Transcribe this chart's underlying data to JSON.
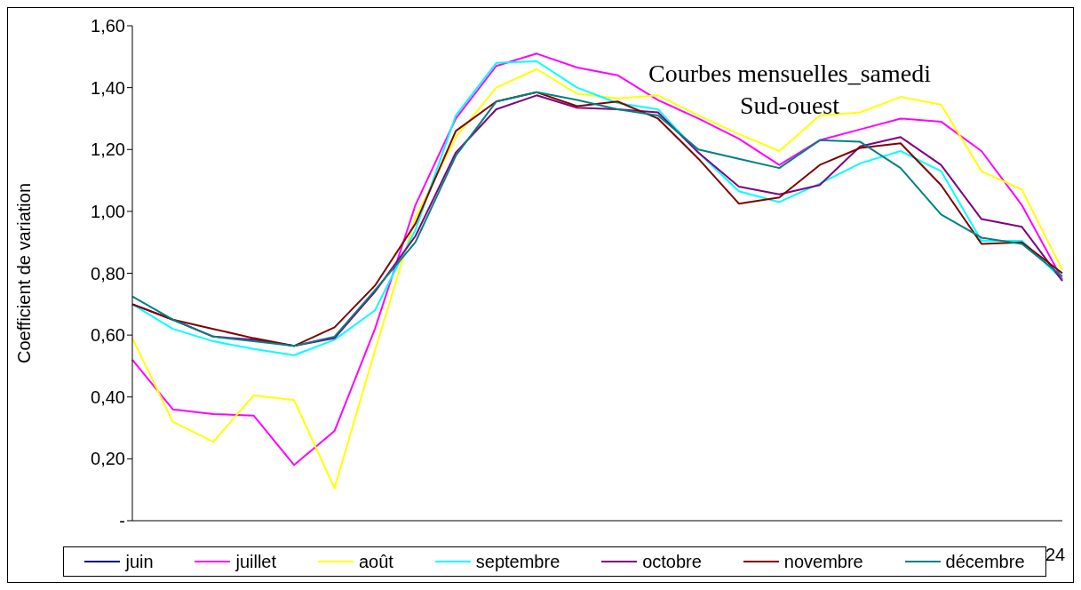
{
  "chart_data": {
    "type": "line",
    "title": "Courbes mensuelles_samedi",
    "subtitle": "Sud-ouest",
    "ylabel": "Coefficient de variation",
    "annotations": [
      "24"
    ],
    "categories": [
      null,
      null,
      null,
      null,
      null,
      null,
      null,
      null,
      null,
      null,
      null,
      null,
      null,
      null,
      null,
      null,
      null,
      null,
      null,
      null,
      null,
      null,
      null,
      null
    ],
    "ylim": [
      0,
      1.6
    ],
    "yticks": [
      {
        "value": 0,
        "label": "-"
      },
      {
        "value": 0.2,
        "label": "0,20"
      },
      {
        "value": 0.4,
        "label": "0,40"
      },
      {
        "value": 0.6,
        "label": "0,60"
      },
      {
        "value": 0.8,
        "label": "0,80"
      },
      {
        "value": 1.0,
        "label": "1,00"
      },
      {
        "value": 1.2,
        "label": "1,20"
      },
      {
        "value": 1.4,
        "label": "1,40"
      },
      {
        "value": 1.6,
        "label": "1,60"
      }
    ],
    "grid": false,
    "legend": "bottom",
    "marker": "none",
    "line_style": "solid",
    "series": [
      {
        "name": "juin",
        "color": "#000080",
        "values": [
          null,
          null,
          null,
          null,
          null,
          null,
          null,
          null,
          null,
          null,
          null,
          null,
          null,
          null,
          null,
          null,
          null,
          null,
          null,
          null,
          null,
          null,
          null,
          null
        ]
      },
      {
        "name": "juillet",
        "color": "#ff00ff",
        "values": [
          0.52,
          0.36,
          0.345,
          0.34,
          0.18,
          0.29,
          0.62,
          1.02,
          1.3,
          1.47,
          1.51,
          1.465,
          1.44,
          1.36,
          1.3,
          1.235,
          1.15,
          1.23,
          1.265,
          1.3,
          1.29,
          1.195,
          1.02,
          0.78
        ]
      },
      {
        "name": "août",
        "color": "#ffff00",
        "values": [
          0.59,
          0.32,
          0.255,
          0.405,
          0.39,
          0.105,
          0.55,
          0.98,
          1.24,
          1.4,
          1.46,
          1.38,
          1.365,
          1.375,
          1.31,
          1.25,
          1.195,
          1.31,
          1.32,
          1.37,
          1.345,
          1.13,
          1.07,
          0.81
        ]
      },
      {
        "name": "septembre",
        "color": "#00ffff",
        "values": [
          0.7,
          0.62,
          0.58,
          0.555,
          0.535,
          0.585,
          0.68,
          0.94,
          1.31,
          1.48,
          1.485,
          1.4,
          1.35,
          1.33,
          1.19,
          1.065,
          1.03,
          1.09,
          1.155,
          1.195,
          1.13,
          0.905,
          0.905,
          0.78
        ]
      },
      {
        "name": "octobre",
        "color": "#800080",
        "values": [
          0.7,
          0.65,
          0.595,
          0.585,
          0.565,
          0.59,
          0.74,
          0.92,
          1.19,
          1.33,
          1.375,
          1.335,
          1.33,
          1.32,
          1.19,
          1.08,
          1.055,
          1.085,
          1.21,
          1.24,
          1.15,
          0.975,
          0.95,
          0.775
        ]
      },
      {
        "name": "novembre",
        "color": "#800000",
        "values": [
          0.7,
          0.65,
          0.62,
          0.59,
          0.565,
          0.625,
          0.76,
          0.96,
          1.26,
          1.355,
          1.385,
          1.34,
          1.355,
          1.3,
          1.17,
          1.025,
          1.045,
          1.15,
          1.205,
          1.22,
          1.085,
          0.895,
          0.9,
          0.8
        ]
      },
      {
        "name": "décembre",
        "color": "#008080",
        "values": [
          0.725,
          0.65,
          0.595,
          0.58,
          0.565,
          0.595,
          0.745,
          0.9,
          1.18,
          1.355,
          1.385,
          1.36,
          1.33,
          1.31,
          1.2,
          1.17,
          1.14,
          1.23,
          1.225,
          1.14,
          0.99,
          0.915,
          0.895,
          0.79
        ]
      }
    ]
  }
}
